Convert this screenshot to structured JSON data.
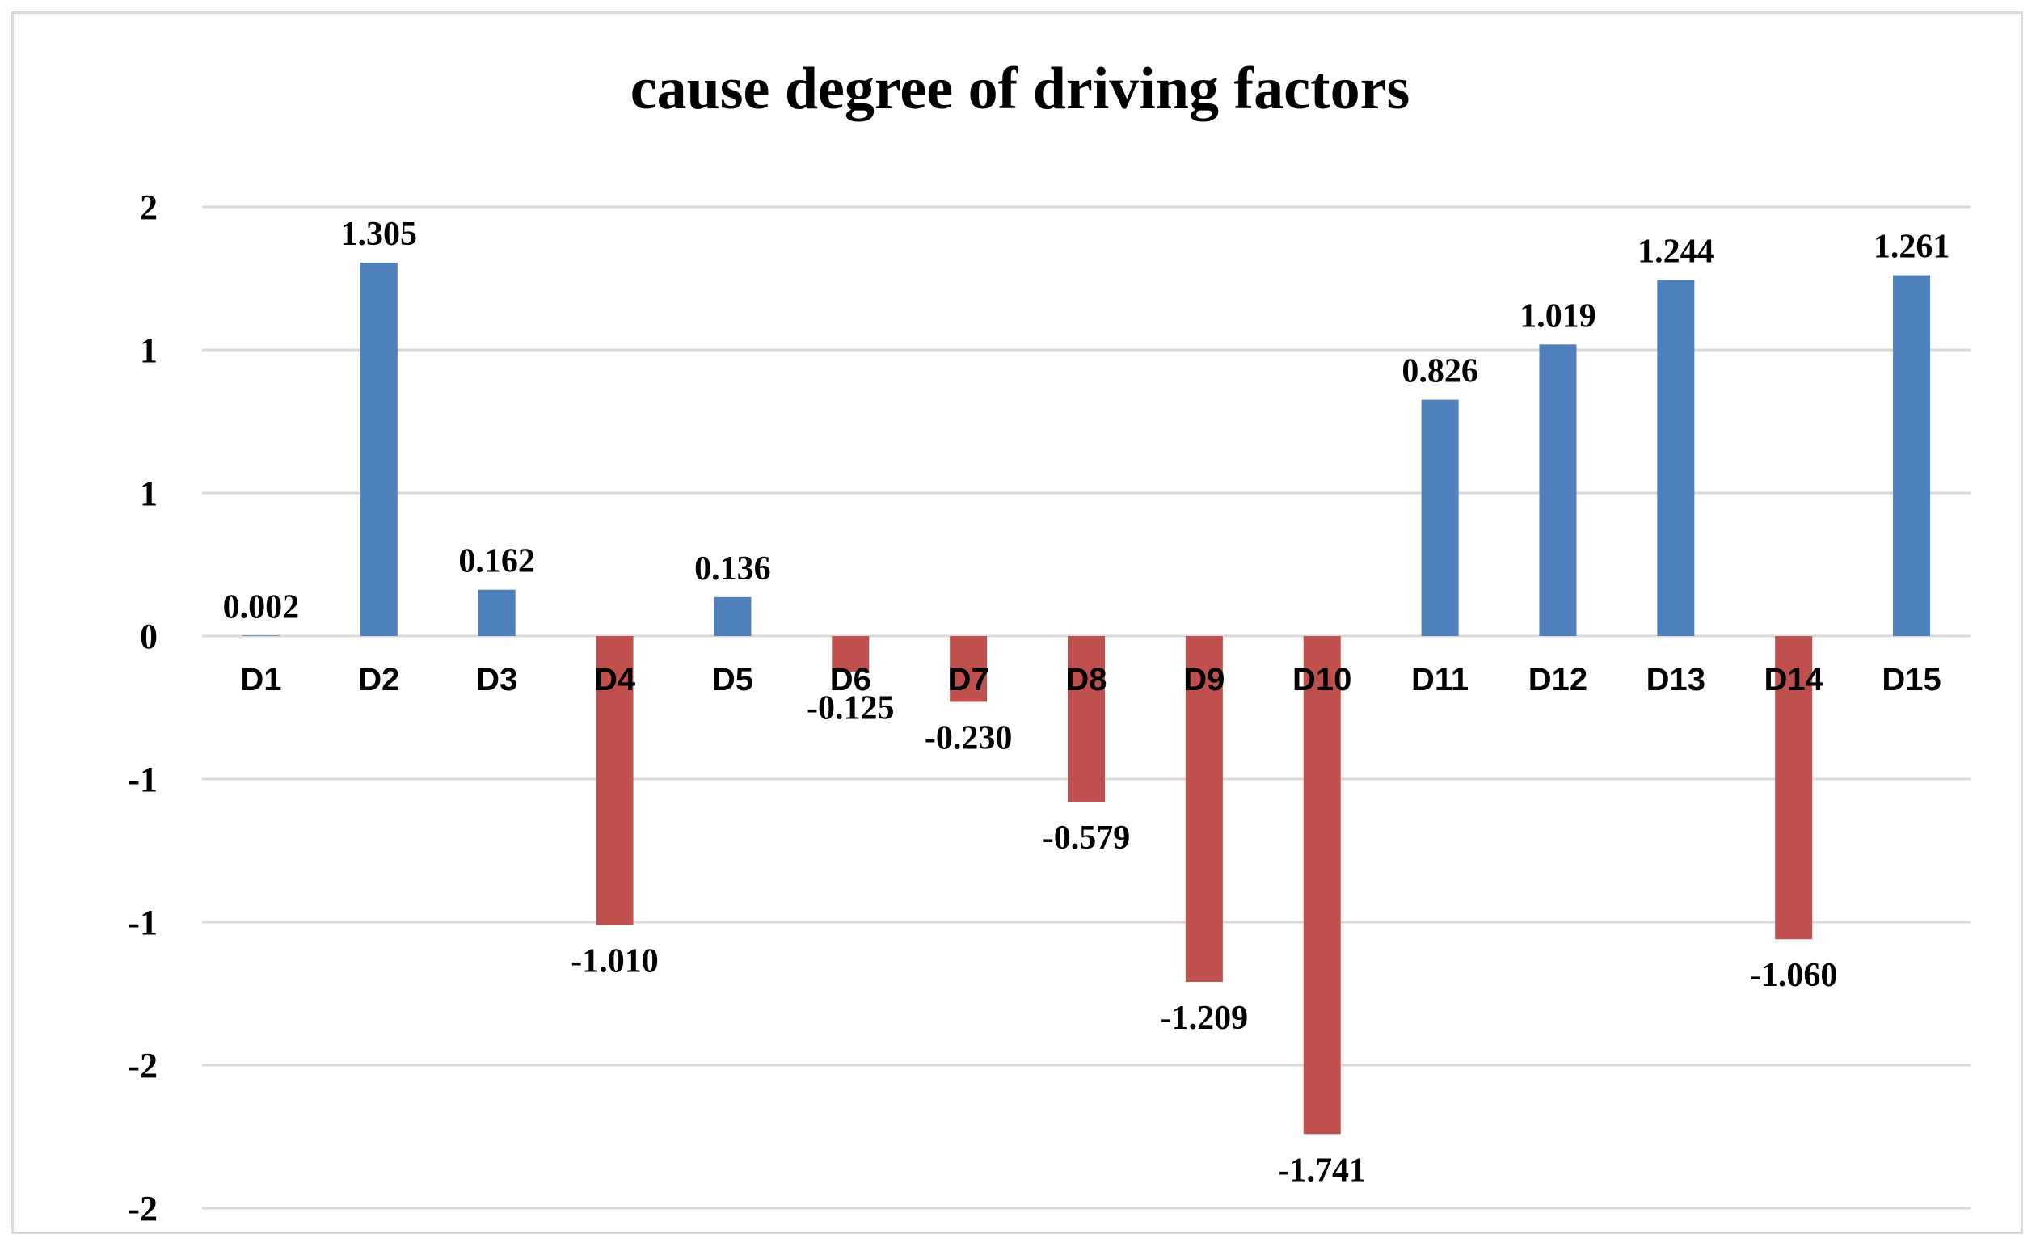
{
  "chart_data": {
    "type": "bar",
    "title": "cause degree of driving factors",
    "xlabel": "",
    "ylabel": "",
    "categories": [
      "D1",
      "D2",
      "D3",
      "D4",
      "D5",
      "D6",
      "D7",
      "D8",
      "D9",
      "D10",
      "D11",
      "D12",
      "D13",
      "D14",
      "D15"
    ],
    "values": [
      0.002,
      1.305,
      0.162,
      -1.01,
      0.136,
      -0.125,
      -0.23,
      -0.579,
      -1.209,
      -1.741,
      0.826,
      1.019,
      1.244,
      -1.06,
      1.261
    ],
    "data_labels": [
      "0.002",
      "1.305",
      "0.162",
      "-1.010",
      "0.136",
      "-0.125",
      "-0.230",
      "-0.579",
      "-1.209",
      "-1.741",
      "0.826",
      "1.019",
      "1.244",
      "-1.060",
      "1.261"
    ],
    "ylim": [
      -2,
      1.5
    ],
    "yticks": [
      1.5,
      1.0,
      0.5,
      0,
      -0.5,
      -1.0,
      -1.5,
      -2.0
    ],
    "ytick_labels": [
      "2",
      "1",
      "1",
      "0",
      "-1",
      "-1",
      "-2",
      "-2"
    ],
    "grid": true,
    "colors": {
      "positive": "#4f81bd",
      "negative": "#c0504d",
      "grid": "#d9d9d9",
      "frame": "#d9d9d9"
    }
  }
}
